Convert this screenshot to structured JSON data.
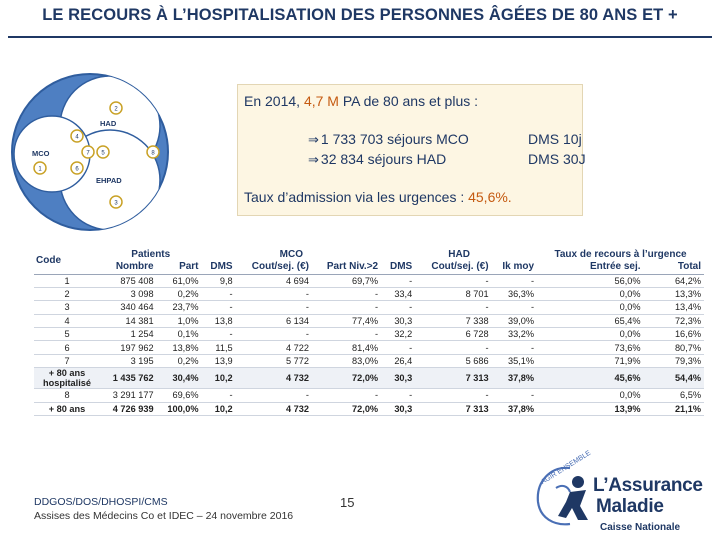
{
  "title": "LE RECOURS À L’HOSPITALISATION DES PERSONNES ÂGÉES DE 80 ANS ET +",
  "venn": {
    "labels": {
      "had": "HAD",
      "mco": "MCO",
      "ehpad": "EHPAD"
    },
    "nodes": [
      "1",
      "2",
      "3",
      "4",
      "5",
      "6",
      "7",
      "8"
    ]
  },
  "info": {
    "prefix": "En 2014, ",
    "highlight": "4,7 M",
    "suffix": " PA  de 80 ans et plus :",
    "mco_sejours": "1 733 703 séjours MCO",
    "mco_dms": "DMS 10j",
    "had_sejours": "32 834 séjours HAD",
    "had_dms": "DMS 30J",
    "admission_label": "Taux d’admission via les urgences : ",
    "admission_value": "45,6%."
  },
  "table": {
    "groups": {
      "code": "Code",
      "patients": "Patients",
      "mco": "MCO",
      "had": "HAD",
      "recours": "Taux de recours à l’urgence"
    },
    "columns": [
      "Nombre",
      "Part",
      "DMS",
      "Cout/sej. (€)",
      "Part Niv.>2",
      "DMS",
      "Cout/sej. (€)",
      "Ik moy",
      "Entrée sej.",
      "Total"
    ],
    "rows": [
      {
        "code": "1",
        "cells": [
          "875 408",
          "61,0%",
          "9,8",
          "4 694",
          "69,7%",
          "-",
          "-",
          "-",
          "56,0%",
          "64,2%"
        ]
      },
      {
        "code": "2",
        "cells": [
          "3 098",
          "0,2%",
          "-",
          "-",
          "-",
          "33,4",
          "8 701",
          "36,3%",
          "0,0%",
          "13,3%"
        ]
      },
      {
        "code": "3",
        "cells": [
          "340 464",
          "23,7%",
          "-",
          "-",
          "-",
          "-",
          "-",
          "-",
          "0,0%",
          "13,4%"
        ]
      },
      {
        "code": "4",
        "cells": [
          "14 381",
          "1,0%",
          "13,8",
          "6 134",
          "77,4%",
          "30,3",
          "7 338",
          "39,0%",
          "65,4%",
          "72,3%"
        ]
      },
      {
        "code": "5",
        "cells": [
          "1 254",
          "0,1%",
          "-",
          "-",
          "-",
          "32,2",
          "6 728",
          "33,2%",
          "0,0%",
          "16,6%"
        ]
      },
      {
        "code": "6",
        "cells": [
          "197 962",
          "13,8%",
          "11,5",
          "4 722",
          "81,4%",
          "-",
          "-",
          "-",
          "73,6%",
          "80,7%"
        ]
      },
      {
        "code": "7",
        "cells": [
          "3 195",
          "0,2%",
          "13,9",
          "5 772",
          "83,0%",
          "26,4",
          "5 686",
          "35,1%",
          "71,9%",
          "79,3%"
        ]
      },
      {
        "code": "+ 80 ans hospitalisé",
        "cells": [
          "1 435 762",
          "30,4%",
          "10,2",
          "4 732",
          "72,0%",
          "30,3",
          "7 313",
          "37,8%",
          "45,6%",
          "54,4%"
        ]
      },
      {
        "code": "8",
        "cells": [
          "3 291 177",
          "69,6%",
          "-",
          "-",
          "-",
          "-",
          "-",
          "-",
          "0,0%",
          "6,5%"
        ]
      },
      {
        "code": "+ 80 ans",
        "cells": [
          "4 726 939",
          "100,0%",
          "10,2",
          "4 732",
          "72,0%",
          "30,3",
          "7 313",
          "37,8%",
          "13,9%",
          "21,1%"
        ]
      }
    ]
  },
  "footer": {
    "org": "DDGOS/DOS/DHOSPI/CMS",
    "event": "Assises des Médecins Co et IDEC – 24 novembre 2016",
    "page": "15"
  },
  "logo": {
    "line1": "L’Assurance",
    "line2": "Maladie",
    "line3": "Caisse Nationale",
    "tagline": "AGIR ENSEMBLE",
    "accent": "#4a6fb5",
    "navy": "#1f3864"
  }
}
